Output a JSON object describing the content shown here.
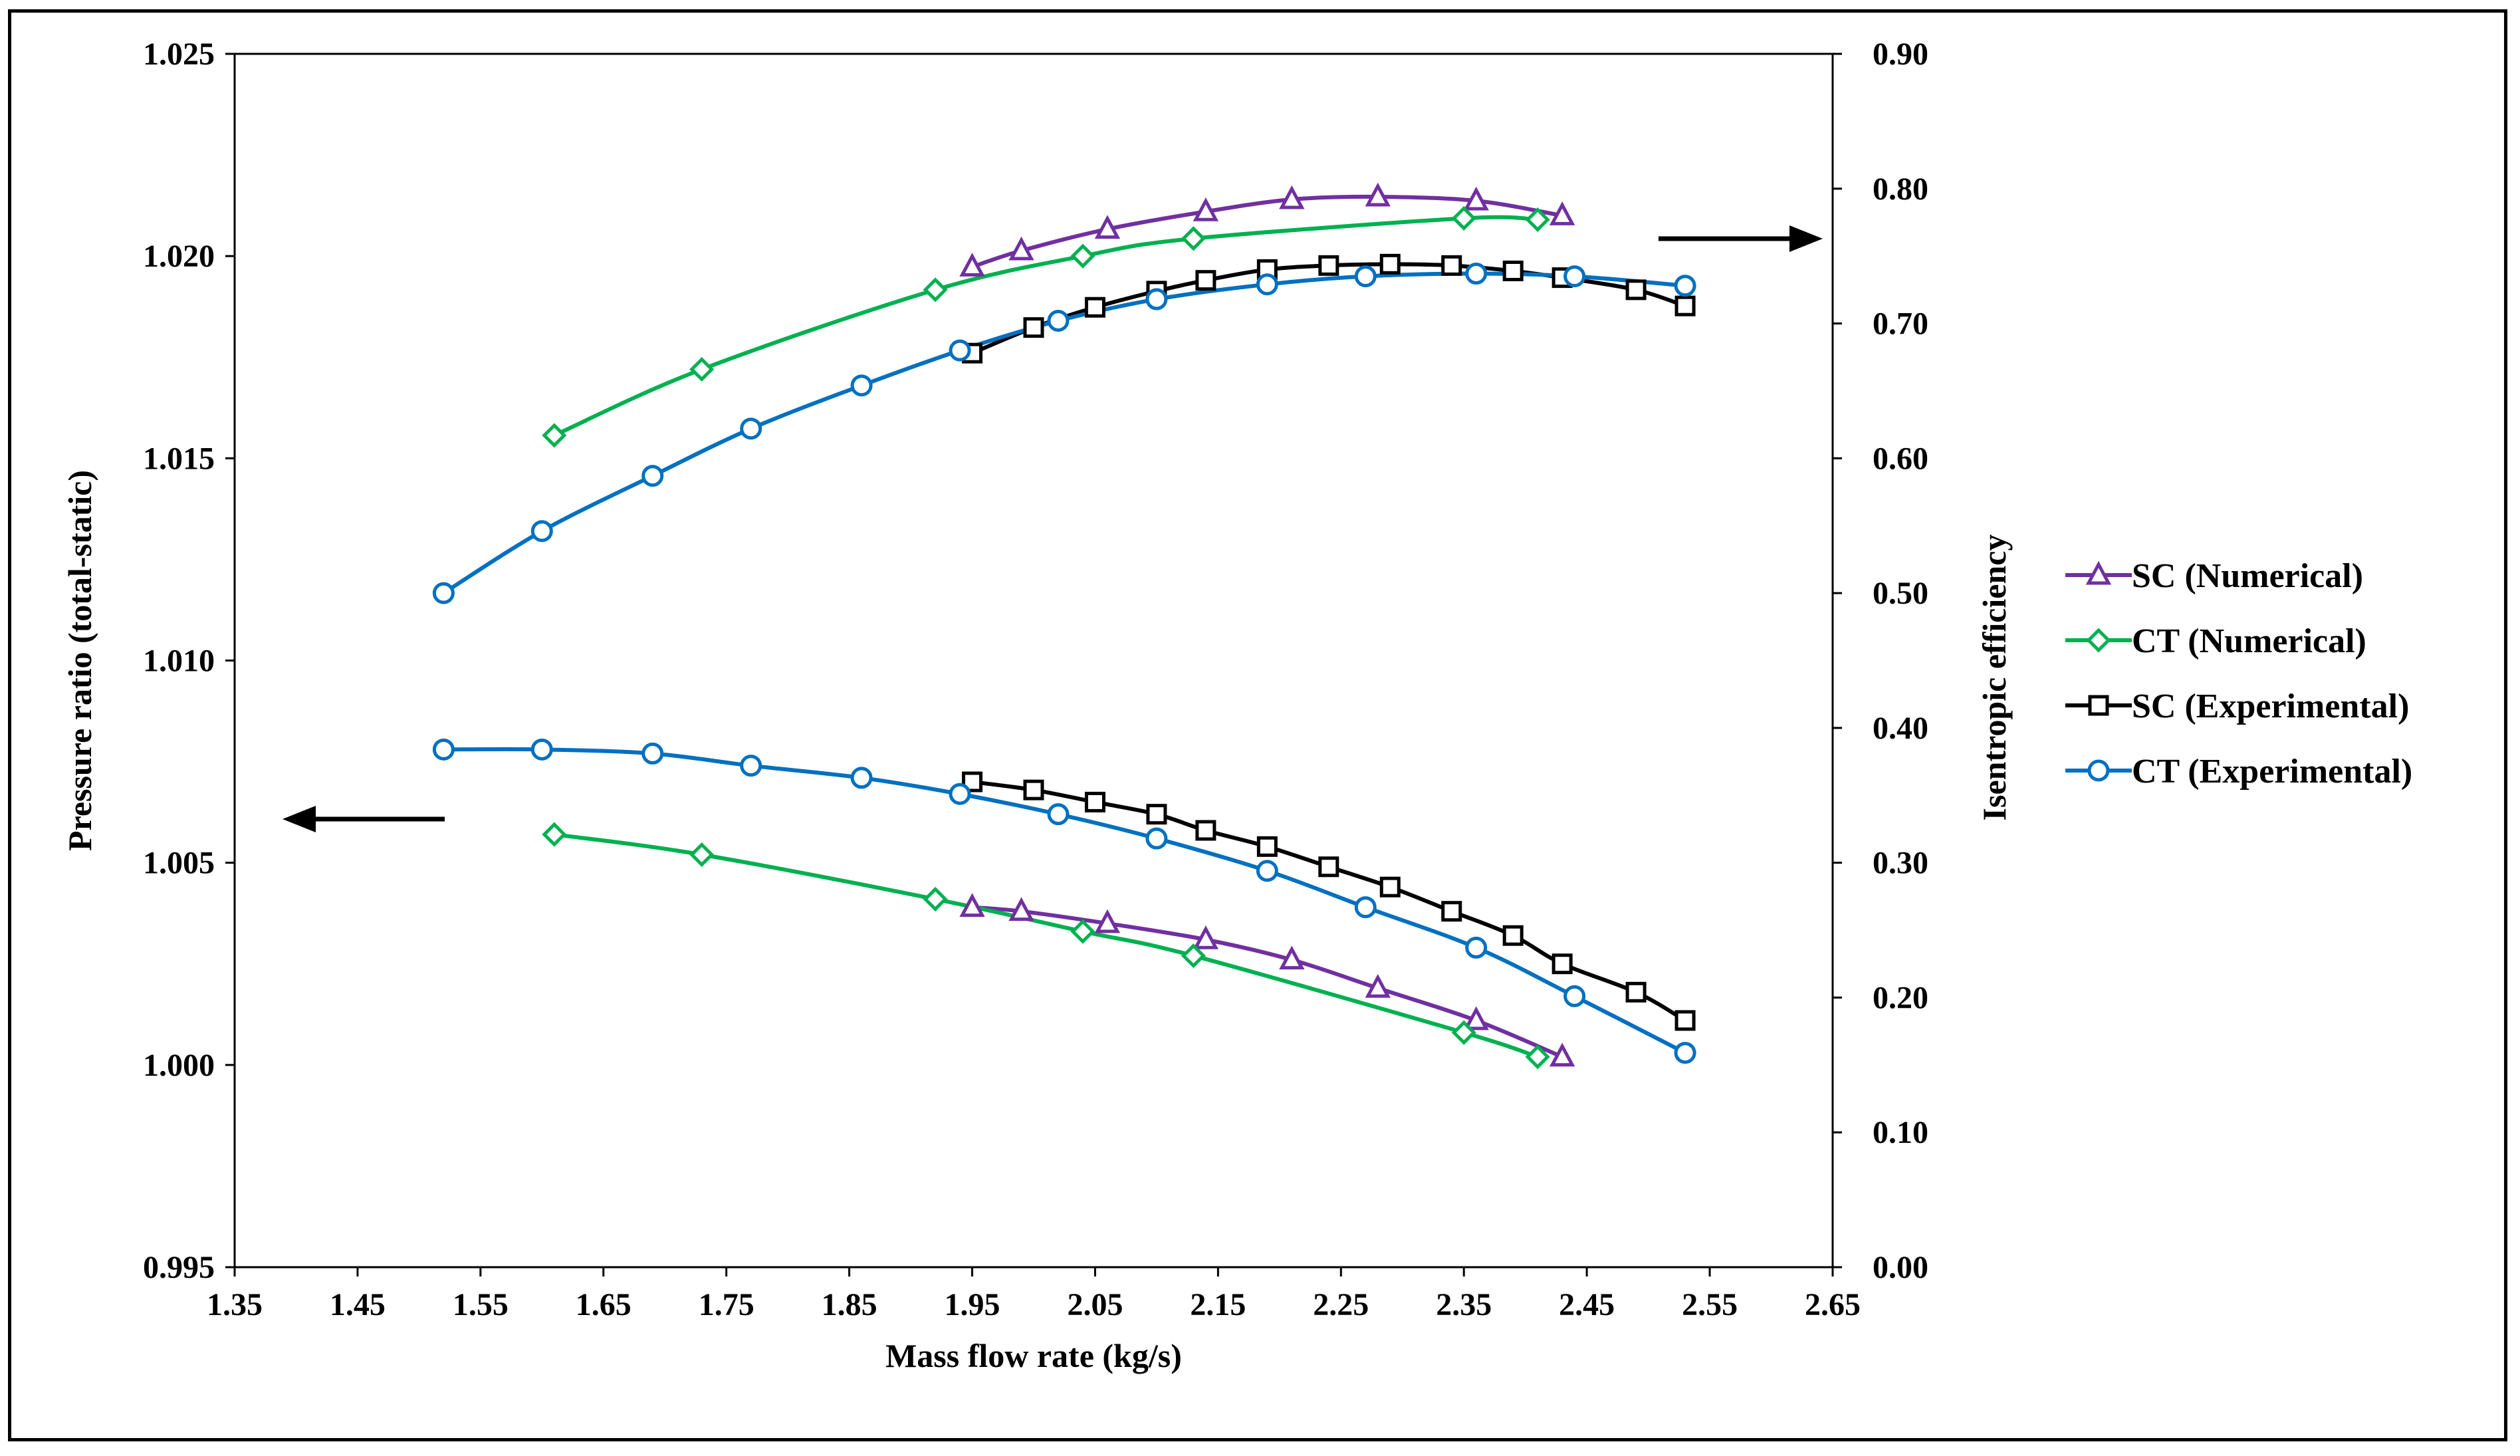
{
  "chart_data": {
    "type": "line",
    "title": "",
    "xlabel": "Mass flow rate (kg/s)",
    "ylabel_left": "Pressure ratio (total-static)",
    "ylabel_right": "Isentropic efficiency",
    "xlim": [
      1.35,
      2.65
    ],
    "ylim_left": [
      0.995,
      1.025
    ],
    "ylim_right": [
      0.0,
      0.9
    ],
    "x_ticks": [
      "1.35",
      "1.45",
      "1.55",
      "1.65",
      "1.75",
      "1.85",
      "1.95",
      "2.05",
      "2.15",
      "2.25",
      "2.35",
      "2.45",
      "2.55",
      "2.65"
    ],
    "y_ticks_left": [
      "0.995",
      "1.000",
      "1.005",
      "1.010",
      "1.015",
      "1.020",
      "1.025"
    ],
    "y_ticks_right": [
      "0.00",
      "0.10",
      "0.20",
      "0.30",
      "0.40",
      "0.50",
      "0.60",
      "0.70",
      "0.80",
      "0.90"
    ],
    "grid": false,
    "legend_position": "right",
    "series": [
      {
        "name": "SC (Numerical)",
        "metric": "efficiency",
        "axis": "right",
        "color": "#7030a0",
        "marker": "triangle",
        "x": [
          1.95,
          1.99,
          2.06,
          2.14,
          2.21,
          2.28,
          2.36,
          2.43
        ],
        "y": [
          0.742,
          0.754,
          0.77,
          0.783,
          0.792,
          0.794,
          0.791,
          0.78
        ]
      },
      {
        "name": "CT (Numerical)",
        "metric": "efficiency",
        "axis": "right",
        "color": "#00b050",
        "marker": "diamond",
        "x": [
          1.61,
          1.73,
          1.92,
          2.04,
          2.13,
          2.35,
          2.41
        ],
        "y": [
          0.617,
          0.666,
          0.725,
          0.75,
          0.763,
          0.778,
          0.777
        ]
      },
      {
        "name": "SC (Experimental)",
        "metric": "efficiency",
        "axis": "right",
        "color": "#000000",
        "marker": "square",
        "x": [
          1.95,
          2.0,
          2.05,
          2.1,
          2.14,
          2.19,
          2.24,
          2.29,
          2.34,
          2.39,
          2.43,
          2.49,
          2.53
        ],
        "y": [
          0.678,
          0.697,
          0.712,
          0.724,
          0.732,
          0.74,
          0.743,
          0.744,
          0.743,
          0.739,
          0.734,
          0.725,
          0.713
        ]
      },
      {
        "name": "CT (Experimental)",
        "metric": "efficiency",
        "axis": "right",
        "color": "#0070c0",
        "marker": "circle",
        "x": [
          1.52,
          1.6,
          1.69,
          1.77,
          1.86,
          1.94,
          2.02,
          2.1,
          2.19,
          2.27,
          2.36,
          2.44,
          2.53
        ],
        "y": [
          0.5,
          0.546,
          0.587,
          0.622,
          0.654,
          0.68,
          0.702,
          0.718,
          0.729,
          0.735,
          0.737,
          0.735,
          0.728
        ]
      },
      {
        "name": "SC (Numerical)",
        "metric": "pressure_ratio",
        "axis": "left",
        "color": "#7030a0",
        "marker": "triangle",
        "x": [
          1.95,
          1.99,
          2.06,
          2.14,
          2.21,
          2.28,
          2.36,
          2.43
        ],
        "y": [
          1.0039,
          1.0038,
          1.0035,
          1.0031,
          1.0026,
          1.0019,
          1.0011,
          1.0002
        ]
      },
      {
        "name": "CT (Numerical)",
        "metric": "pressure_ratio",
        "axis": "left",
        "color": "#00b050",
        "marker": "diamond",
        "x": [
          1.61,
          1.73,
          1.92,
          2.04,
          2.13,
          2.35,
          2.41
        ],
        "y": [
          1.0057,
          1.0052,
          1.0041,
          1.0033,
          1.0027,
          1.0008,
          1.0002
        ]
      },
      {
        "name": "SC (Experimental)",
        "metric": "pressure_ratio",
        "axis": "left",
        "color": "#000000",
        "marker": "square",
        "x": [
          1.95,
          2.0,
          2.05,
          2.1,
          2.14,
          2.19,
          2.24,
          2.29,
          2.34,
          2.39,
          2.43,
          2.49,
          2.53
        ],
        "y": [
          1.007,
          1.0068,
          1.0065,
          1.0062,
          1.0058,
          1.0054,
          1.0049,
          1.0044,
          1.0038,
          1.0032,
          1.0025,
          1.0018,
          1.0011
        ]
      },
      {
        "name": "CT (Experimental)",
        "metric": "pressure_ratio",
        "axis": "left",
        "color": "#0070c0",
        "marker": "circle",
        "x": [
          1.52,
          1.6,
          1.69,
          1.77,
          1.86,
          1.94,
          2.02,
          2.1,
          2.19,
          2.27,
          2.36,
          2.44,
          2.53
        ],
        "y": [
          1.0078,
          1.0078,
          1.0077,
          1.0074,
          1.0071,
          1.0067,
          1.0062,
          1.0056,
          1.0048,
          1.0039,
          1.0029,
          1.0017,
          1.0003
        ]
      }
    ],
    "legend": [
      "SC (Numerical)",
      "CT (Numerical)",
      "SC (Experimental)",
      "CT (Experimental)"
    ]
  }
}
